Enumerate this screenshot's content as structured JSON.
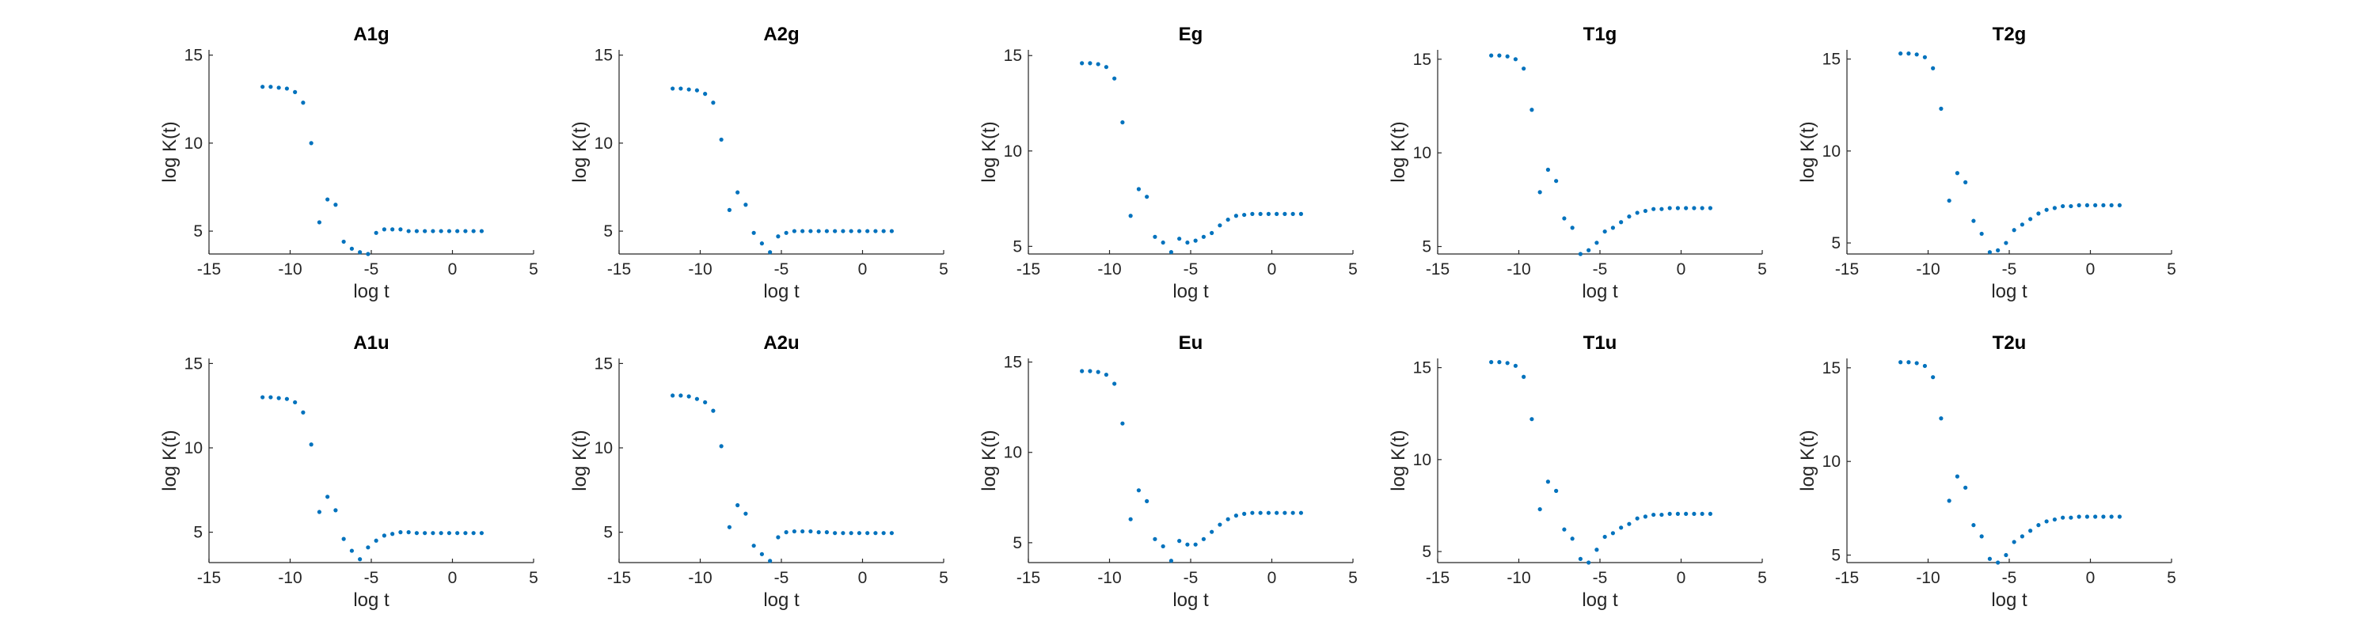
{
  "chart_data": [
    {
      "type": "scatter",
      "title": "A1g",
      "xlabel": "log t",
      "ylabel": "log K(t)",
      "xlim": [
        -15,
        5
      ],
      "ylim": [
        3.7,
        15.3
      ],
      "xticks": [
        -15,
        -10,
        -5,
        0,
        5
      ],
      "yticks": [
        5,
        10,
        15
      ],
      "color": "#0072BD",
      "grid": false,
      "x": [
        -11.7,
        -11.2,
        -10.7,
        -10.2,
        -9.7,
        -9.2,
        -8.7,
        -8.2,
        -7.7,
        -7.2,
        -6.7,
        -6.2,
        -5.7,
        -5.2,
        -4.7,
        -4.2,
        -3.7,
        -3.2,
        -2.7,
        -2.2,
        -1.7,
        -1.2,
        -0.7,
        -0.2,
        0.3,
        0.8,
        1.3,
        1.8
      ],
      "y": [
        13.2,
        13.2,
        13.15,
        13.1,
        12.9,
        12.3,
        10.0,
        5.5,
        6.8,
        6.5,
        4.4,
        4.0,
        3.8,
        3.7,
        4.9,
        5.1,
        5.1,
        5.1,
        5.0,
        5.0,
        5.0,
        5.0,
        5.0,
        5.0,
        5.0,
        5.0,
        5.0,
        5.0
      ]
    },
    {
      "type": "scatter",
      "title": "A2g",
      "xlabel": "log t",
      "ylabel": "log K(t)",
      "xlim": [
        -15,
        5
      ],
      "ylim": [
        3.7,
        15.3
      ],
      "xticks": [
        -15,
        -10,
        -5,
        0,
        5
      ],
      "yticks": [
        5,
        10,
        15
      ],
      "color": "#0072BD",
      "grid": false,
      "x": [
        -11.7,
        -11.2,
        -10.7,
        -10.2,
        -9.7,
        -9.2,
        -8.7,
        -8.2,
        -7.7,
        -7.2,
        -6.7,
        -6.2,
        -5.7,
        -5.2,
        -4.7,
        -4.2,
        -3.7,
        -3.2,
        -2.7,
        -2.2,
        -1.7,
        -1.2,
        -0.7,
        -0.2,
        0.3,
        0.8,
        1.3,
        1.8
      ],
      "y": [
        13.1,
        13.1,
        13.05,
        13.0,
        12.8,
        12.3,
        10.2,
        6.2,
        7.2,
        6.5,
        4.9,
        4.3,
        3.8,
        4.7,
        4.9,
        5.0,
        5.0,
        5.0,
        5.0,
        5.0,
        5.0,
        5.0,
        5.0,
        5.0,
        5.0,
        5.0,
        5.0,
        5.0
      ]
    },
    {
      "type": "scatter",
      "title": "Eg",
      "xlabel": "log t",
      "ylabel": "log K(t)",
      "xlim": [
        -15,
        5
      ],
      "ylim": [
        4.6,
        15.3
      ],
      "xticks": [
        -15,
        -10,
        -5,
        0,
        5
      ],
      "yticks": [
        5,
        10,
        15
      ],
      "color": "#0072BD",
      "grid": false,
      "x": [
        -11.7,
        -11.2,
        -10.7,
        -10.2,
        -9.7,
        -9.2,
        -8.7,
        -8.2,
        -7.7,
        -7.2,
        -6.7,
        -6.2,
        -5.7,
        -5.2,
        -4.7,
        -4.2,
        -3.7,
        -3.2,
        -2.7,
        -2.2,
        -1.7,
        -1.2,
        -0.7,
        -0.2,
        0.3,
        0.8,
        1.3,
        1.8
      ],
      "y": [
        14.6,
        14.6,
        14.55,
        14.4,
        13.8,
        11.5,
        6.6,
        8.0,
        7.6,
        5.5,
        5.2,
        4.7,
        5.4,
        5.2,
        5.3,
        5.5,
        5.7,
        6.1,
        6.4,
        6.6,
        6.65,
        6.7,
        6.7,
        6.7,
        6.7,
        6.7,
        6.7,
        6.7
      ]
    },
    {
      "type": "scatter",
      "title": "T1g",
      "xlabel": "log t",
      "ylabel": "log K(t)",
      "xlim": [
        -15,
        5
      ],
      "ylim": [
        4.6,
        15.5
      ],
      "xticks": [
        -15,
        -10,
        -5,
        0,
        5
      ],
      "yticks": [
        5,
        10,
        15
      ],
      "color": "#0072BD",
      "grid": false,
      "x": [
        -11.7,
        -11.2,
        -10.7,
        -10.2,
        -9.7,
        -9.2,
        -8.7,
        -8.2,
        -7.7,
        -7.2,
        -6.7,
        -6.2,
        -5.7,
        -5.2,
        -4.7,
        -4.2,
        -3.7,
        -3.2,
        -2.7,
        -2.2,
        -1.7,
        -1.2,
        -0.7,
        -0.2,
        0.3,
        0.8,
        1.3,
        1.8
      ],
      "y": [
        15.2,
        15.2,
        15.15,
        15.0,
        14.5,
        12.3,
        7.9,
        9.1,
        8.5,
        6.5,
        6.0,
        4.6,
        4.8,
        5.2,
        5.8,
        6.0,
        6.3,
        6.6,
        6.8,
        6.9,
        7.0,
        7.0,
        7.05,
        7.05,
        7.05,
        7.05,
        7.05,
        7.05
      ]
    },
    {
      "type": "scatter",
      "title": "T2g",
      "xlabel": "log t",
      "ylabel": "log K(t)",
      "xlim": [
        -15,
        5
      ],
      "ylim": [
        4.4,
        15.5
      ],
      "xticks": [
        -15,
        -10,
        -5,
        0,
        5
      ],
      "yticks": [
        5,
        10,
        15
      ],
      "color": "#0072BD",
      "grid": false,
      "x": [
        -11.7,
        -11.2,
        -10.7,
        -10.2,
        -9.7,
        -9.2,
        -8.7,
        -8.2,
        -7.7,
        -7.2,
        -6.7,
        -6.2,
        -5.7,
        -5.2,
        -4.7,
        -4.2,
        -3.7,
        -3.2,
        -2.7,
        -2.2,
        -1.7,
        -1.2,
        -0.7,
        -0.2,
        0.3,
        0.8,
        1.3,
        1.8
      ],
      "y": [
        15.3,
        15.3,
        15.25,
        15.1,
        14.5,
        12.3,
        7.3,
        8.8,
        8.3,
        6.2,
        5.5,
        4.5,
        4.6,
        5.0,
        5.7,
        6.0,
        6.3,
        6.6,
        6.8,
        6.9,
        7.0,
        7.0,
        7.05,
        7.05,
        7.05,
        7.05,
        7.05,
        7.05
      ]
    },
    {
      "type": "scatter",
      "title": "A1u",
      "xlabel": "log t",
      "ylabel": "log K(t)",
      "xlim": [
        -15,
        5
      ],
      "ylim": [
        3.2,
        15.3
      ],
      "xticks": [
        -15,
        -10,
        -5,
        0,
        5
      ],
      "yticks": [
        5,
        10,
        15
      ],
      "color": "#0072BD",
      "grid": false,
      "x": [
        -11.7,
        -11.2,
        -10.7,
        -10.2,
        -9.7,
        -9.2,
        -8.7,
        -8.2,
        -7.7,
        -7.2,
        -6.7,
        -6.2,
        -5.7,
        -5.2,
        -4.7,
        -4.2,
        -3.7,
        -3.2,
        -2.7,
        -2.2,
        -1.7,
        -1.2,
        -0.7,
        -0.2,
        0.3,
        0.8,
        1.3,
        1.8
      ],
      "y": [
        13.0,
        13.0,
        12.95,
        12.9,
        12.7,
        12.1,
        10.2,
        6.2,
        7.1,
        6.3,
        4.6,
        3.9,
        3.4,
        4.1,
        4.5,
        4.8,
        4.9,
        5.0,
        5.0,
        4.95,
        4.95,
        4.95,
        4.95,
        4.95,
        4.95,
        4.95,
        4.95,
        4.95
      ]
    },
    {
      "type": "scatter",
      "title": "A2u",
      "xlabel": "log t",
      "ylabel": "log K(t)",
      "xlim": [
        -15,
        5
      ],
      "ylim": [
        3.2,
        15.3
      ],
      "xticks": [
        -15,
        -10,
        -5,
        0,
        5
      ],
      "yticks": [
        5,
        10,
        15
      ],
      "color": "#0072BD",
      "grid": false,
      "x": [
        -11.7,
        -11.2,
        -10.7,
        -10.2,
        -9.7,
        -9.2,
        -8.7,
        -8.2,
        -7.7,
        -7.2,
        -6.7,
        -6.2,
        -5.7,
        -5.2,
        -4.7,
        -4.2,
        -3.7,
        -3.2,
        -2.7,
        -2.2,
        -1.7,
        -1.2,
        -0.7,
        -0.2,
        0.3,
        0.8,
        1.3,
        1.8
      ],
      "y": [
        13.1,
        13.1,
        13.05,
        12.9,
        12.7,
        12.2,
        10.1,
        5.3,
        6.6,
        6.1,
        4.2,
        3.7,
        3.3,
        4.7,
        5.0,
        5.05,
        5.05,
        5.05,
        5.0,
        5.0,
        4.95,
        4.95,
        4.95,
        4.95,
        4.95,
        4.95,
        4.95,
        4.95
      ]
    },
    {
      "type": "scatter",
      "title": "Eu",
      "xlabel": "log t",
      "ylabel": "log K(t)",
      "xlim": [
        -15,
        5
      ],
      "ylim": [
        3.9,
        15.2
      ],
      "xticks": [
        -15,
        -10,
        -5,
        0,
        5
      ],
      "yticks": [
        5,
        10,
        15
      ],
      "color": "#0072BD",
      "grid": false,
      "x": [
        -11.7,
        -11.2,
        -10.7,
        -10.2,
        -9.7,
        -9.2,
        -8.7,
        -8.2,
        -7.7,
        -7.2,
        -6.7,
        -6.2,
        -5.7,
        -5.2,
        -4.7,
        -4.2,
        -3.7,
        -3.2,
        -2.7,
        -2.2,
        -1.7,
        -1.2,
        -0.7,
        -0.2,
        0.3,
        0.8,
        1.3,
        1.8
      ],
      "y": [
        14.5,
        14.5,
        14.45,
        14.3,
        13.8,
        11.6,
        6.3,
        7.9,
        7.3,
        5.2,
        4.8,
        4.0,
        5.1,
        4.9,
        4.9,
        5.2,
        5.6,
        6.0,
        6.3,
        6.5,
        6.6,
        6.65,
        6.65,
        6.65,
        6.65,
        6.65,
        6.65,
        6.65
      ]
    },
    {
      "type": "scatter",
      "title": "T1u",
      "xlabel": "log t",
      "ylabel": "log K(t)",
      "xlim": [
        -15,
        5
      ],
      "ylim": [
        4.4,
        15.5
      ],
      "xticks": [
        -15,
        -10,
        -5,
        0,
        5
      ],
      "yticks": [
        5,
        10,
        15
      ],
      "color": "#0072BD",
      "grid": false,
      "x": [
        -11.7,
        -11.2,
        -10.7,
        -10.2,
        -9.7,
        -9.2,
        -8.7,
        -8.2,
        -7.7,
        -7.2,
        -6.7,
        -6.2,
        -5.7,
        -5.2,
        -4.7,
        -4.2,
        -3.7,
        -3.2,
        -2.7,
        -2.2,
        -1.7,
        -1.2,
        -0.7,
        -0.2,
        0.3,
        0.8,
        1.3,
        1.8
      ],
      "y": [
        15.3,
        15.3,
        15.25,
        15.1,
        14.5,
        12.2,
        7.3,
        8.8,
        8.3,
        6.2,
        5.7,
        4.6,
        4.4,
        5.1,
        5.8,
        6.0,
        6.3,
        6.5,
        6.8,
        6.9,
        7.0,
        7.0,
        7.05,
        7.05,
        7.05,
        7.05,
        7.05,
        7.05
      ]
    },
    {
      "type": "scatter",
      "title": "T2u",
      "xlabel": "log t",
      "ylabel": "log K(t)",
      "xlim": [
        -15,
        5
      ],
      "ylim": [
        4.6,
        15.5
      ],
      "xticks": [
        -15,
        -10,
        -5,
        0,
        5
      ],
      "yticks": [
        5,
        10,
        15
      ],
      "color": "#0072BD",
      "grid": false,
      "x": [
        -11.7,
        -11.2,
        -10.7,
        -10.2,
        -9.7,
        -9.2,
        -8.7,
        -8.2,
        -7.7,
        -7.2,
        -6.7,
        -6.2,
        -5.7,
        -5.2,
        -4.7,
        -4.2,
        -3.7,
        -3.2,
        -2.7,
        -2.2,
        -1.7,
        -1.2,
        -0.7,
        -0.2,
        0.3,
        0.8,
        1.3,
        1.8
      ],
      "y": [
        15.3,
        15.3,
        15.25,
        15.1,
        14.5,
        12.3,
        7.9,
        9.2,
        8.6,
        6.6,
        6.0,
        4.8,
        4.6,
        5.0,
        5.7,
        6.0,
        6.3,
        6.6,
        6.8,
        6.9,
        7.0,
        7.0,
        7.05,
        7.05,
        7.05,
        7.05,
        7.05,
        7.05
      ]
    }
  ]
}
